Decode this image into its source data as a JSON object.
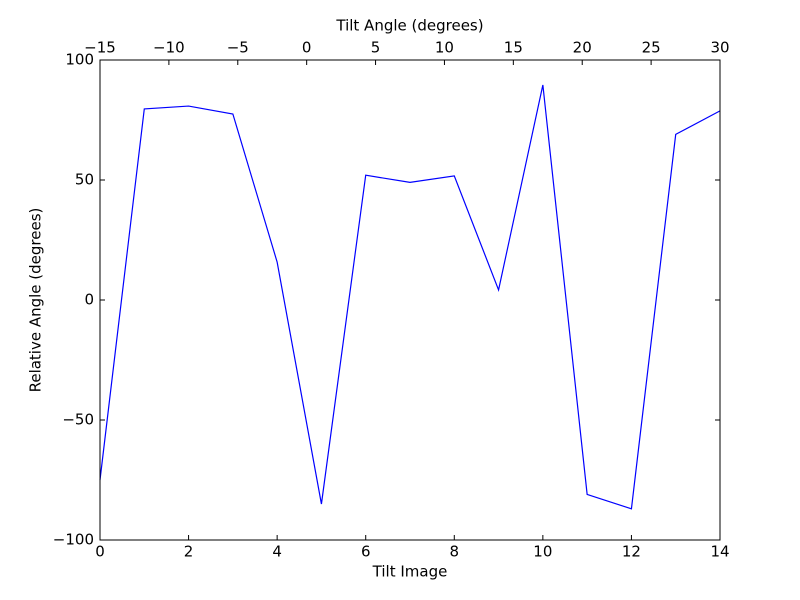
{
  "chart_data": {
    "type": "line",
    "xlabel": "Tilt Image",
    "ylabel": "Relative Angle (degrees)",
    "x2label": "Tilt Angle (degrees)",
    "x": [
      0,
      1,
      2,
      3,
      4,
      5,
      6,
      7,
      8,
      9,
      10,
      11,
      12,
      13,
      14
    ],
    "series": [
      {
        "name": "Relative Angle",
        "color": "#0000ff",
        "values": [
          -75,
          79.6,
          80.8,
          77.5,
          15.8,
          -85,
          52,
          49,
          51.7,
          4.2,
          89.6,
          -81,
          -87,
          69,
          78.8
        ]
      }
    ],
    "xlim": [
      0,
      14
    ],
    "xticks": [
      0,
      2,
      4,
      6,
      8,
      10,
      12,
      14
    ],
    "x2lim": [
      -15,
      30
    ],
    "x2ticks": [
      {
        "value": -15,
        "label": "−15"
      },
      {
        "value": -10,
        "label": "−10"
      },
      {
        "value": -5,
        "label": "−5"
      },
      0,
      5,
      10,
      15,
      20,
      25,
      30
    ],
    "ylim": [
      -100,
      100
    ],
    "yticks": [
      {
        "value": -100,
        "label": "−100"
      },
      {
        "value": -50,
        "label": "−50"
      },
      0,
      50,
      100
    ],
    "grid": false
  }
}
